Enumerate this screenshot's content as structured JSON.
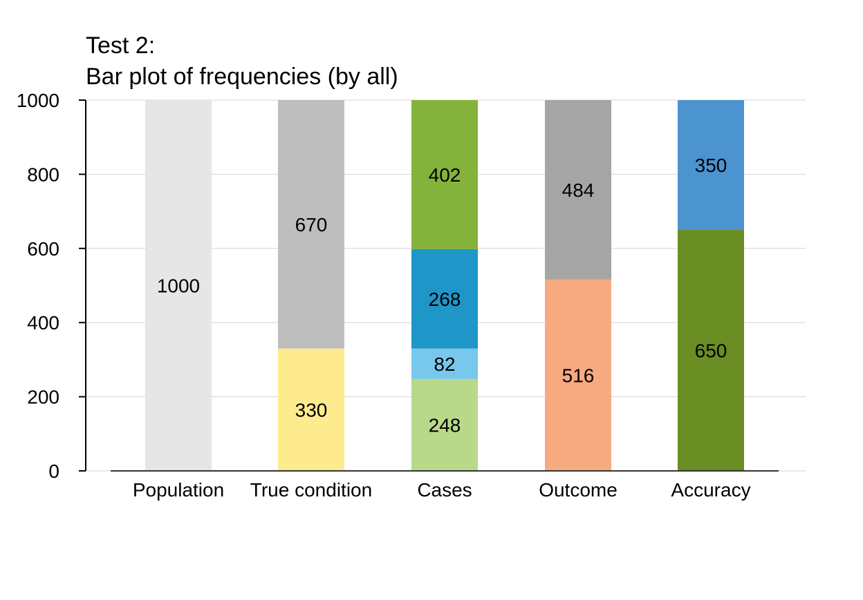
{
  "chart_data": {
    "type": "bar",
    "stacked": true,
    "title": "Test 2:",
    "subtitle": "Bar plot of frequencies (by all)",
    "xlabel": "",
    "ylabel": "",
    "ylim": [
      0,
      1000
    ],
    "yticks": [
      "0",
      "200",
      "400",
      "600",
      "800",
      "1000"
    ],
    "ytick_values": [
      0,
      200,
      400,
      600,
      800,
      1000
    ],
    "grid": true,
    "legend": "none",
    "categories": [
      "Population",
      "True condition",
      "Cases",
      "Outcome",
      "Accuracy"
    ],
    "bars": [
      {
        "category": "Population",
        "segments": [
          {
            "value": 1000,
            "label": "1000",
            "color": "#e6e6e6"
          }
        ]
      },
      {
        "category": "True condition",
        "segments": [
          {
            "value": 330,
            "label": "330",
            "color": "#feeb8e"
          },
          {
            "value": 670,
            "label": "670",
            "color": "#bebebe"
          }
        ]
      },
      {
        "category": "Cases",
        "segments": [
          {
            "value": 248,
            "label": "248",
            "color": "#b8d98a"
          },
          {
            "value": 82,
            "label": "82",
            "color": "#78c7ec"
          },
          {
            "value": 268,
            "label": "268",
            "color": "#1e96c8"
          },
          {
            "value": 402,
            "label": "402",
            "color": "#83b33b"
          }
        ]
      },
      {
        "category": "Outcome",
        "segments": [
          {
            "value": 516,
            "label": "516",
            "color": "#f7a980"
          },
          {
            "value": 484,
            "label": "484",
            "color": "#a5a5a5"
          }
        ]
      },
      {
        "category": "Accuracy",
        "segments": [
          {
            "value": 650,
            "label": "650",
            "color": "#6a8d24"
          },
          {
            "value": 350,
            "label": "350",
            "color": "#4b94cf"
          }
        ]
      }
    ]
  }
}
